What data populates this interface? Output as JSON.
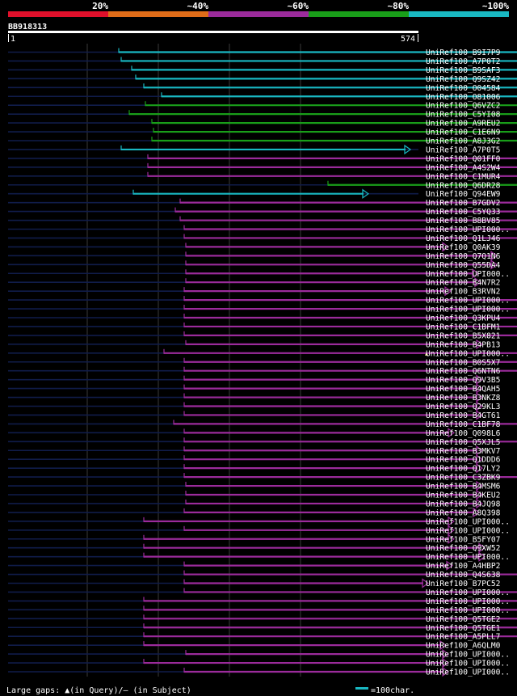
{
  "colors": {
    "background": "#000000",
    "dark_line": "#101c4a",
    "grid": "#3a3a3a",
    "gap_marker": "#ffff99",
    "identity_bins": [
      "#e0102b",
      "#e06d19",
      "#9b2b9b",
      "#199e19",
      "#19b8c2"
    ]
  },
  "identity_scale": {
    "labels": [
      "20%",
      "~40%",
      "~60%",
      "~80%",
      "~100%"
    ]
  },
  "query": {
    "name": "BB918313",
    "length": 574,
    "start_label": "1",
    "end_label": "574"
  },
  "grid_positions": [
    125,
    250,
    375,
    500
  ],
  "hits": [
    {
      "name": "UniRef100_B9I7P9",
      "start": 147,
      "end": 751,
      "bin": 4,
      "gaps": []
    },
    {
      "name": "UniRef100_A7P0T2",
      "start": 150,
      "end": 751,
      "bin": 4,
      "gaps": []
    },
    {
      "name": "UniRef100_B9SAF3",
      "start": 163,
      "end": 751,
      "bin": 4,
      "gaps": []
    },
    {
      "name": "UniRef100_Q9SZ42",
      "start": 168,
      "end": 751,
      "bin": 4,
      "gaps": []
    },
    {
      "name": "UniRef100_O04584",
      "start": 178,
      "end": 751,
      "bin": 4,
      "gaps": []
    },
    {
      "name": "UniRef100_O81006",
      "start": 200,
      "end": 751,
      "bin": 4,
      "gaps": []
    },
    {
      "name": "UniRef100_Q6VZC2",
      "start": 180,
      "end": 745,
      "bin": 3,
      "gaps": [
        706
      ]
    },
    {
      "name": "UniRef100_C5YI08",
      "start": 160,
      "end": 745,
      "bin": 3,
      "gaps": [
        698
      ]
    },
    {
      "name": "UniRef100_A9REU2",
      "start": 188,
      "end": 751,
      "bin": 3,
      "gaps": []
    },
    {
      "name": "UniRef100_C1E6N9",
      "start": 190,
      "end": 751,
      "bin": 3,
      "gaps": []
    },
    {
      "name": "UniRef100_A8J3G2",
      "start": 188,
      "end": 745,
      "bin": 3,
      "gaps": [
        718
      ]
    },
    {
      "name": "UniRef100_A7P0T5",
      "start": 150,
      "end": 508,
      "bin": 4,
      "gaps": []
    },
    {
      "name": "UniRef100_Q01FF0",
      "start": 183,
      "end": 751,
      "bin": 2,
      "gaps": []
    },
    {
      "name": "UniRef100_A4S2W4",
      "start": 183,
      "end": 751,
      "bin": 2,
      "gaps": []
    },
    {
      "name": "UniRef100_C1MUR4",
      "start": 183,
      "end": 751,
      "bin": 2,
      "gaps": []
    },
    {
      "name": "UniRef100_Q6DR28",
      "start": 406,
      "end": 751,
      "bin": 3,
      "gaps": []
    },
    {
      "name": "UniRef100_Q94EW9",
      "start": 165,
      "end": 456,
      "bin": 4,
      "gaps": []
    },
    {
      "name": "UniRef100_B7GDV2",
      "start": 223,
      "end": 751,
      "bin": 2,
      "gaps": []
    },
    {
      "name": "UniRef100_C5YQ33",
      "start": 217,
      "end": 745,
      "bin": 2,
      "gaps": [
        717
      ]
    },
    {
      "name": "UniRef100_B8BV85",
      "start": 223,
      "end": 745,
      "bin": 2,
      "gaps": [
        729
      ]
    },
    {
      "name": "UniRef100_UPI000..",
      "start": 228,
      "end": 745,
      "bin": 2,
      "gaps": [
        735
      ]
    },
    {
      "name": "UniRef100_Q1LJ46",
      "start": 228,
      "end": 745,
      "bin": 2,
      "gaps": [
        735
      ]
    },
    {
      "name": "UniRef100_Q0AK39",
      "start": 230,
      "end": 555,
      "bin": 2,
      "gaps": []
    },
    {
      "name": "UniRef100_Q7Q1N6",
      "start": 230,
      "end": 615,
      "bin": 2,
      "gaps": []
    },
    {
      "name": "UniRef100_Q55DA4",
      "start": 230,
      "end": 615,
      "bin": 2,
      "gaps": []
    },
    {
      "name": "UniRef100_UPI000..",
      "start": 230,
      "end": 592,
      "bin": 2,
      "gaps": []
    },
    {
      "name": "UniRef100_B4N7R2",
      "start": 230,
      "end": 595,
      "bin": 2,
      "gaps": []
    },
    {
      "name": "UniRef100_B3RVN2",
      "start": 228,
      "end": 558,
      "bin": 2,
      "gaps": []
    },
    {
      "name": "UniRef100_UPI000..",
      "start": 228,
      "end": 745,
      "bin": 2,
      "gaps": [
        693
      ]
    },
    {
      "name": "UniRef100_UPI000..",
      "start": 228,
      "end": 745,
      "bin": 2,
      "gaps": [
        735
      ]
    },
    {
      "name": "UniRef100_Q3KPU4",
      "start": 228,
      "end": 745,
      "bin": 2,
      "gaps": [
        693
      ]
    },
    {
      "name": "UniRef100_C1BFM1",
      "start": 228,
      "end": 745,
      "bin": 2,
      "gaps": [
        735
      ]
    },
    {
      "name": "UniRef100_B5X821",
      "start": 228,
      "end": 745,
      "bin": 2,
      "gaps": [
        735
      ]
    },
    {
      "name": "UniRef100_B4PB13",
      "start": 230,
      "end": 597,
      "bin": 2,
      "gaps": []
    },
    {
      "name": "UniRef100_UPI000..",
      "start": 203,
      "end": 660,
      "bin": 2,
      "gaps": [
        528
      ]
    },
    {
      "name": "UniRef100_B0S5X7",
      "start": 228,
      "end": 745,
      "bin": 2,
      "gaps": []
    },
    {
      "name": "UniRef100_Q6NTN6",
      "start": 228,
      "end": 745,
      "bin": 2,
      "gaps": [
        693
      ]
    },
    {
      "name": "UniRef100_Q9V3B5",
      "start": 228,
      "end": 597,
      "bin": 2,
      "gaps": []
    },
    {
      "name": "UniRef100_B4QAH5",
      "start": 228,
      "end": 597,
      "bin": 2,
      "gaps": []
    },
    {
      "name": "UniRef100_B3NKZ8",
      "start": 228,
      "end": 597,
      "bin": 2,
      "gaps": []
    },
    {
      "name": "UniRef100_Q29KL3",
      "start": 228,
      "end": 597,
      "bin": 2,
      "gaps": []
    },
    {
      "name": "UniRef100_B4GT61",
      "start": 228,
      "end": 597,
      "bin": 2,
      "gaps": []
    },
    {
      "name": "UniRef100_C1BF78",
      "start": 215,
      "end": 745,
      "bin": 2,
      "gaps": []
    },
    {
      "name": "UniRef100_Q098L6",
      "start": 228,
      "end": 562,
      "bin": 2,
      "gaps": []
    },
    {
      "name": "UniRef100_Q5XJL5",
      "start": 228,
      "end": 745,
      "bin": 2,
      "gaps": [
        735
      ]
    },
    {
      "name": "UniRef100_B3MKV7",
      "start": 228,
      "end": 597,
      "bin": 2,
      "gaps": []
    },
    {
      "name": "UniRef100_Q1DDD6",
      "start": 228,
      "end": 597,
      "bin": 2,
      "gaps": []
    },
    {
      "name": "UniRef100_Q17LY2",
      "start": 228,
      "end": 597,
      "bin": 2,
      "gaps": []
    },
    {
      "name": "UniRef100_C3ZBK9",
      "start": 228,
      "end": 745,
      "bin": 2,
      "gaps": []
    },
    {
      "name": "UniRef100_B4MSM6",
      "start": 230,
      "end": 597,
      "bin": 2,
      "gaps": []
    },
    {
      "name": "UniRef100_B4KEU2",
      "start": 230,
      "end": 597,
      "bin": 2,
      "gaps": []
    },
    {
      "name": "UniRef100_B4JQ98",
      "start": 230,
      "end": 597,
      "bin": 2,
      "gaps": []
    },
    {
      "name": "UniRef100_A8Q398",
      "start": 228,
      "end": 593,
      "bin": 2,
      "gaps": []
    },
    {
      "name": "UniRef100_UPI000..",
      "start": 178,
      "end": 562,
      "bin": 2,
      "gaps": []
    },
    {
      "name": "UniRef100_UPI000..",
      "start": 228,
      "end": 562,
      "bin": 2,
      "gaps": []
    },
    {
      "name": "UniRef100_B5FY07",
      "start": 178,
      "end": 562,
      "bin": 2,
      "gaps": []
    },
    {
      "name": "UniRef100_Q9XW52",
      "start": 178,
      "end": 600,
      "bin": 2,
      "gaps": []
    },
    {
      "name": "UniRef100_UPI000..",
      "start": 178,
      "end": 600,
      "bin": 2,
      "gaps": []
    },
    {
      "name": "UniRef100_A4HBP2",
      "start": 228,
      "end": 560,
      "bin": 2,
      "gaps": []
    },
    {
      "name": "UniRef100_Q4S638",
      "start": 228,
      "end": 745,
      "bin": 2,
      "gaps": [
        735
      ]
    },
    {
      "name": "UniRef100_B7PC52",
      "start": 228,
      "end": 530,
      "bin": 2,
      "gaps": []
    },
    {
      "name": "UniRef100_UPI000..",
      "start": 228,
      "end": 745,
      "bin": 2,
      "gaps": []
    },
    {
      "name": "UniRef100_UPI000..",
      "start": 178,
      "end": 745,
      "bin": 2,
      "gaps": [
        676
      ]
    },
    {
      "name": "UniRef100_UPI000..",
      "start": 178,
      "end": 745,
      "bin": 2,
      "gaps": [
        676
      ]
    },
    {
      "name": "UniRef100_Q5TGE2",
      "start": 178,
      "end": 745,
      "bin": 2,
      "gaps": [
        676
      ]
    },
    {
      "name": "UniRef100_Q5TGE1",
      "start": 178,
      "end": 745,
      "bin": 2,
      "gaps": [
        676
      ]
    },
    {
      "name": "UniRef100_A5PLL7",
      "start": 178,
      "end": 745,
      "bin": 2,
      "gaps": [
        676
      ]
    },
    {
      "name": "UniRef100_A6QLM0",
      "start": 178,
      "end": 552,
      "bin": 2,
      "gaps": []
    },
    {
      "name": "UniRef100_UPI000..",
      "start": 230,
      "end": 555,
      "bin": 2,
      "gaps": []
    },
    {
      "name": "UniRef100_UPI000..",
      "start": 178,
      "end": 555,
      "bin": 2,
      "gaps": []
    },
    {
      "name": "UniRef100_UPI000..",
      "start": 228,
      "end": 555,
      "bin": 2,
      "gaps": []
    }
  ],
  "footer": {
    "gaps_legend": "Large gaps: ▲(in Query)/– (in Subject)",
    "scale_legend": "=100char."
  }
}
